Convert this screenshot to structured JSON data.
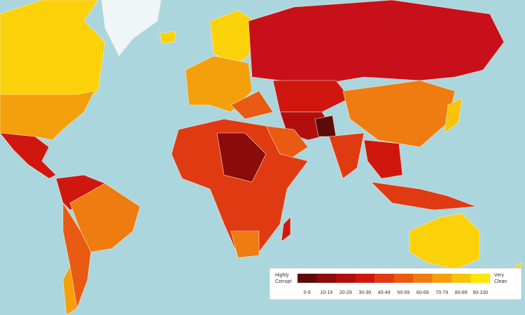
{
  "legend": {
    "low_label": [
      "Highly",
      "Corrupt"
    ],
    "high_label": [
      "Very",
      "Clean"
    ],
    "bins": [
      {
        "label": "0-9",
        "color": "#5e0b0b"
      },
      {
        "label": "10-19",
        "color": "#8c0b0b"
      },
      {
        "label": "20-29",
        "color": "#b20e0e"
      },
      {
        "label": "30-39",
        "color": "#d0170f"
      },
      {
        "label": "40-49",
        "color": "#e03a12"
      },
      {
        "label": "50-59",
        "color": "#e95a12"
      },
      {
        "label": "60-69",
        "color": "#ee7c10"
      },
      {
        "label": "70-79",
        "color": "#f3a00c"
      },
      {
        "label": "80-89",
        "color": "#f8c40a"
      },
      {
        "label": "90-100",
        "color": "#fde60c"
      }
    ]
  }
}
